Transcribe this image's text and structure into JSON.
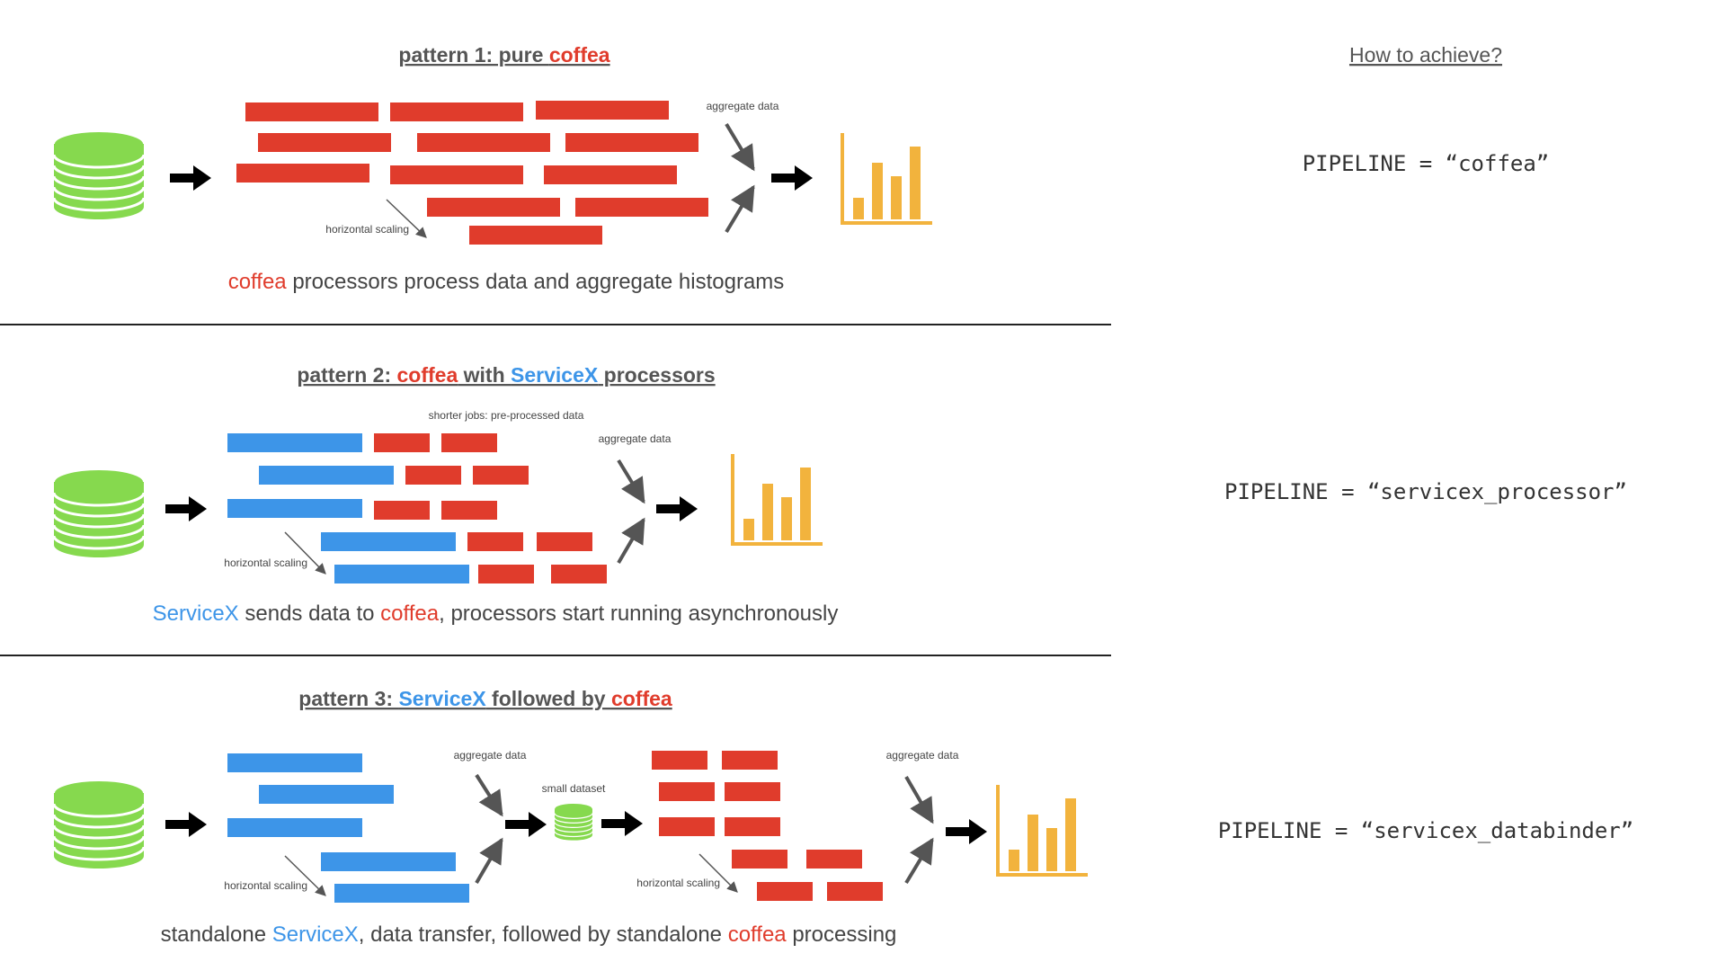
{
  "colors": {
    "coffea": "#e03c2c",
    "servicex": "#3d95e8",
    "database": "#86d94e",
    "histogram": "#f2b33d",
    "text": "#444444"
  },
  "howto": {
    "title": "How to achieve?"
  },
  "patterns": [
    {
      "title": {
        "p1": "pattern 1: pure ",
        "p2": "coffea",
        "p3": "",
        "p4": "",
        "p5": ""
      },
      "caption": {
        "p1": "coffea",
        "p2": " processors process data and aggregate histograms",
        "p3": "",
        "p4": "",
        "p5": ""
      },
      "labels": {
        "aggregate": "aggregate data",
        "scaling": "horizontal scaling"
      },
      "pipeline": "PIPELINE = “coffea”"
    },
    {
      "title": {
        "p1": "pattern 2: ",
        "p2": "coffea",
        "p3": " with ",
        "p4": "ServiceX",
        "p5": " processors"
      },
      "caption": {
        "p1": "ServiceX",
        "p2": " sends data to ",
        "p3": "coffea",
        "p4": ", processors start running asynchronously",
        "p5": ""
      },
      "labels": {
        "shorter": "shorter jobs: pre-processed data",
        "aggregate": "aggregate data",
        "scaling": "horizontal scaling"
      },
      "pipeline": "PIPELINE = “servicex_processor”"
    },
    {
      "title": {
        "p1": "pattern 3: ",
        "p2": "ServiceX",
        "p3": " followed by ",
        "p4": "coffea",
        "p5": ""
      },
      "caption": {
        "p1": "standalone ",
        "p2": "ServiceX",
        "p3": ", data transfer, followed by standalone ",
        "p4": "coffea",
        "p5": " processing"
      },
      "labels": {
        "aggregate1": "aggregate data",
        "small": "small dataset",
        "aggregate2": "aggregate data",
        "scaling1": "horizontal scaling",
        "scaling2": "horizontal scaling"
      },
      "pipeline": "PIPELINE = “servicex_databinder”"
    }
  ]
}
